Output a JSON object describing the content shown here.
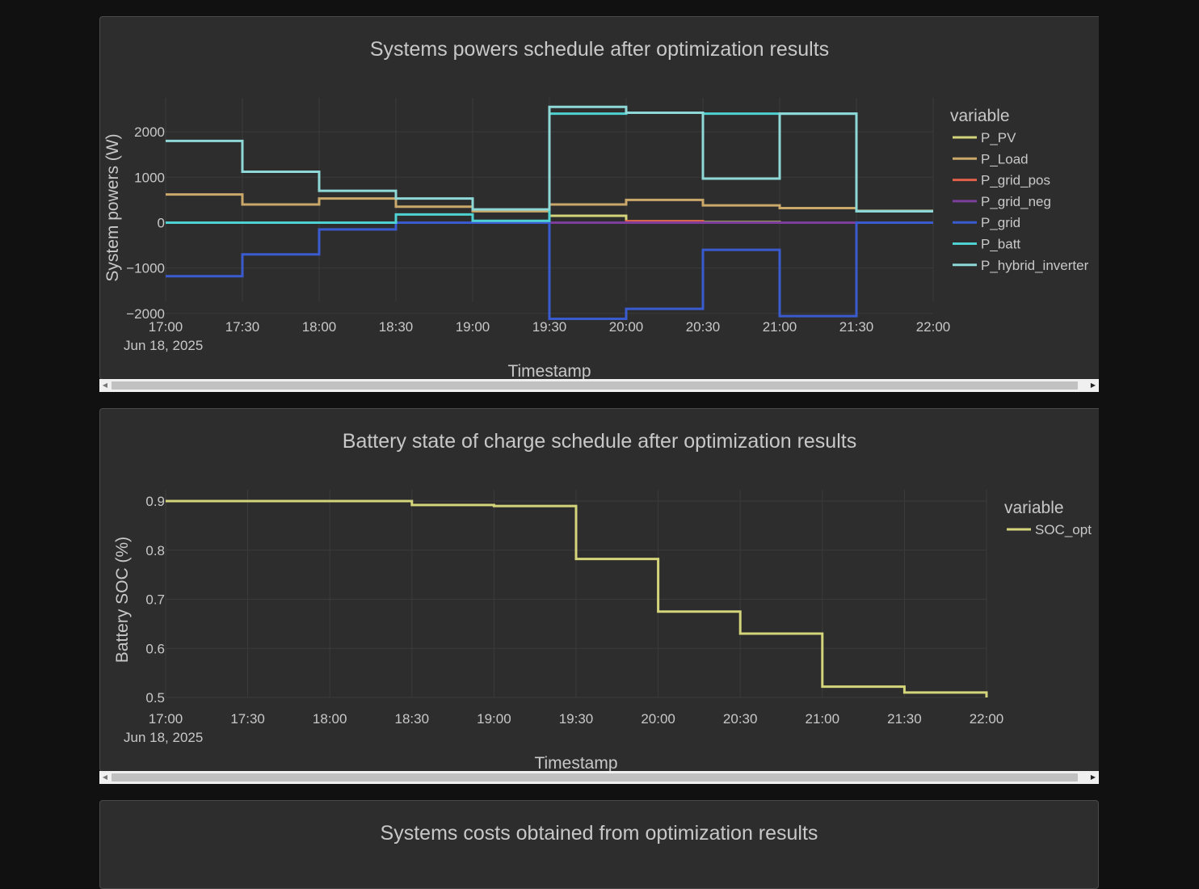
{
  "charts": [
    {
      "type": "line",
      "title": "Systems powers schedule after optimization results",
      "xlabel": "Timestamp",
      "ylabel": "System powers (W)",
      "date_label": "Jun 18, 2025",
      "x_ticks": [
        "17:00",
        "17:30",
        "18:00",
        "18:30",
        "19:00",
        "19:30",
        "20:00",
        "20:30",
        "21:00",
        "21:30",
        "22:00"
      ],
      "y_ticks": [
        2000,
        1000,
        0,
        -1000,
        -2000
      ],
      "y_tick_labels": [
        "2000",
        "1000",
        "0",
        "−1000",
        "−2000"
      ],
      "ylim": [
        -2200,
        2750
      ],
      "legend_title": "variable",
      "series": [
        {
          "name": "P_PV",
          "color": "#d4d47a",
          "values": [
            0,
            0,
            0,
            0,
            10,
            150,
            30,
            10,
            0,
            0
          ]
        },
        {
          "name": "P_Load",
          "color": "#c9a86a",
          "values": [
            620,
            400,
            530,
            350,
            250,
            400,
            500,
            380,
            320,
            260
          ]
        },
        {
          "name": "P_grid_pos",
          "color": "#e0604a",
          "values": [
            0,
            0,
            0,
            0,
            0,
            0,
            30,
            0,
            0,
            0
          ]
        },
        {
          "name": "P_grid_neg",
          "color": "#7c3e9a",
          "values": [
            0,
            0,
            0,
            0,
            0,
            0,
            0,
            0,
            0,
            0
          ]
        },
        {
          "name": "P_grid",
          "color": "#3a5bd0",
          "values": [
            -1180,
            -700,
            -150,
            0,
            0,
            -2120,
            -1900,
            -600,
            -2060,
            0
          ]
        },
        {
          "name": "P_batt",
          "color": "#4fd1d1",
          "values": [
            0,
            0,
            0,
            180,
            40,
            2400,
            2420,
            2400,
            2400,
            250
          ]
        },
        {
          "name": "P_hybrid_inverter",
          "color": "#8ed8d8",
          "values": [
            1800,
            1120,
            700,
            530,
            290,
            2550,
            2420,
            970,
            2400,
            250
          ]
        }
      ]
    },
    {
      "type": "line",
      "title": "Battery state of charge schedule after optimization results",
      "xlabel": "Timestamp",
      "ylabel": "Battery SOC (%)",
      "date_label": "Jun 18, 2025",
      "x_ticks": [
        "17:00",
        "17:30",
        "18:00",
        "18:30",
        "19:00",
        "19:30",
        "20:00",
        "20:30",
        "21:00",
        "21:30",
        "22:00"
      ],
      "y_ticks": [
        0.9,
        0.8,
        0.7,
        0.6,
        0.5
      ],
      "y_tick_labels": [
        "0.9",
        "0.8",
        "0.7",
        "0.6",
        "0.5"
      ],
      "ylim": [
        0.5,
        0.9
      ],
      "legend_title": "variable",
      "series": [
        {
          "name": "SOC_opt",
          "color": "#d4d47a",
          "values": [
            0.9,
            0.9,
            0.9,
            0.892,
            0.89,
            0.782,
            0.675,
            0.63,
            0.522,
            0.51,
            0.5
          ]
        }
      ]
    }
  ],
  "panel3": {
    "title": "Systems costs obtained from optimization results"
  }
}
